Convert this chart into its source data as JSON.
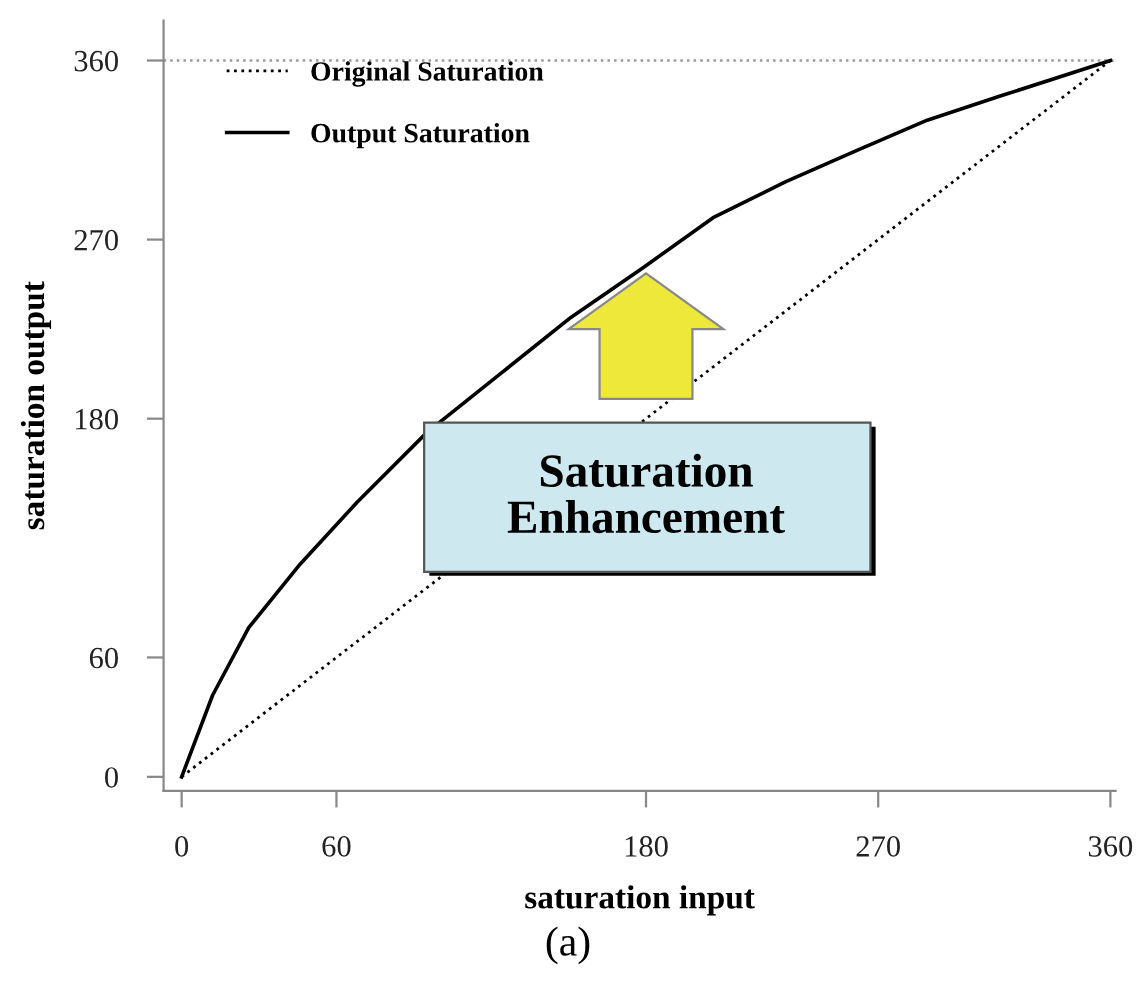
{
  "chart_data": {
    "type": "line",
    "xlabel": "saturation input",
    "ylabel": "saturation output",
    "xlim": [
      -7,
      362
    ],
    "ylim": [
      -7,
      380
    ],
    "xticks": [
      0,
      60,
      180,
      270,
      360
    ],
    "yticks": [
      0,
      60,
      180,
      270,
      360
    ],
    "grid": false,
    "legend": "top left",
    "series": [
      {
        "name": "Original Saturation",
        "color": "#000000",
        "line_style": "dotted",
        "x": [
          0,
          360
        ],
        "values": [
          0,
          360
        ]
      },
      {
        "name": "Output Saturation",
        "color": "#000000",
        "line_style": "solid",
        "x": [
          0,
          12,
          26,
          46,
          68,
          95,
          123,
          151,
          179,
          206,
          234,
          262,
          289,
          317,
          360
        ],
        "values": [
          0,
          41,
          75,
          107,
          138,
          173,
          202,
          231,
          256,
          281,
          299,
          315,
          330,
          342,
          360
        ]
      }
    ],
    "ref_lines": [
      {
        "axis": "y",
        "value": 360,
        "color": "#999999",
        "line_style": "dotted"
      }
    ],
    "annotations": [
      "Saturation\nEnhancement",
      "(a)"
    ]
  }
}
